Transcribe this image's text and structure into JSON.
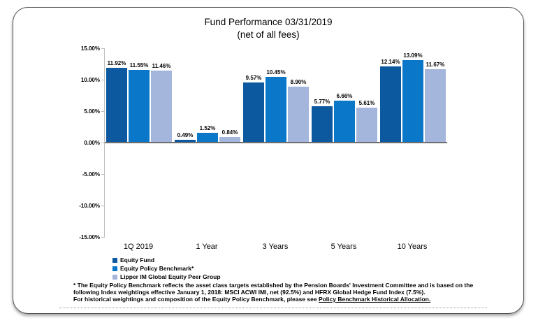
{
  "title": {
    "line1": "Fund Performance 03/31/2019",
    "line2": "(net of all fees)"
  },
  "chart_data": {
    "type": "bar",
    "categories": [
      "1Q 2019",
      "1 Year",
      "3 Years",
      "5 Years",
      "10 Years"
    ],
    "series": [
      {
        "name": "Equity Fund",
        "color": "#0c59a0",
        "values": [
          11.92,
          0.49,
          9.57,
          5.77,
          12.14
        ]
      },
      {
        "name": "Equity Policy Benchmark*",
        "color": "#0a77c8",
        "values": [
          11.55,
          1.52,
          10.45,
          6.66,
          13.09
        ]
      },
      {
        "name": "Lipper IM Global Equity Peer Group",
        "color": "#a5b6dc",
        "values": [
          11.46,
          0.84,
          8.9,
          5.61,
          11.67
        ]
      }
    ],
    "value_suffix": "%",
    "ylim": [
      -15,
      15
    ],
    "ytick_labels": [
      "15.00%",
      "10.00%",
      "5.00%",
      "0.00%",
      "-5.00%",
      "-10.00%",
      "-15.00%"
    ],
    "grid": false,
    "legend_position": "bottom-left",
    "axis_color": "#6e6e6e"
  },
  "footnote": {
    "line1": "* The Equity Policy Benchmark reflects the asset class targets established by the Pension Boards' Investment Committee and is based on the",
    "line2": "following Index weightings effective January 1, 2018:  MSCI ACWI IMI, net (92.5%) and HFRX Global Hedge Fund Index (7.5%).",
    "line3_prefix": "For historical weightings and composition of the Equity Policy Benchmark, please see ",
    "link_text": "Policy Benchmark Historical Allocation."
  }
}
